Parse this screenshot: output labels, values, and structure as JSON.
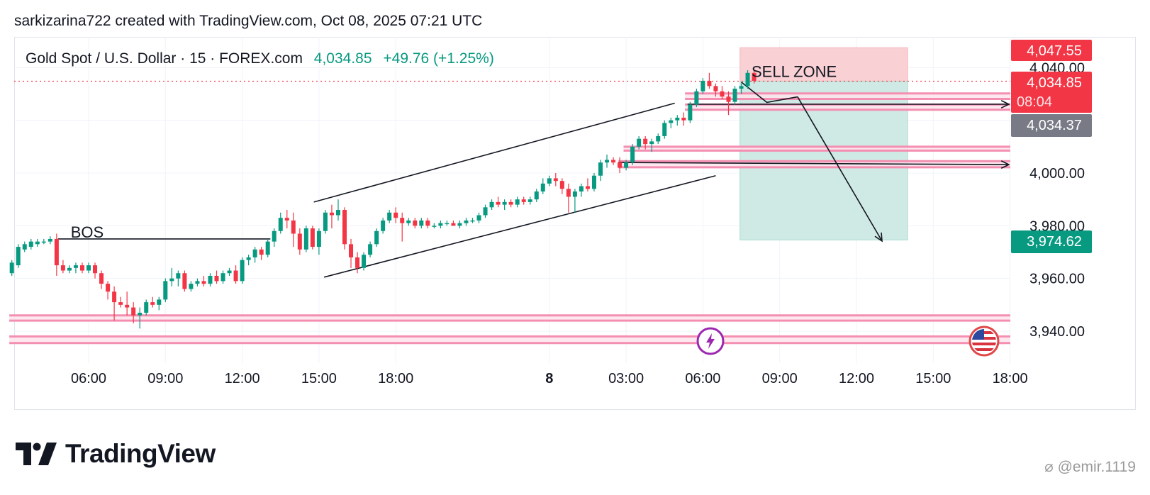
{
  "header": {
    "credit": "sarkizarina722 created with TradingView.com, Oct 08, 2025 07:21 UTC"
  },
  "legend": {
    "symbol": "Gold Spot / U.S. Dollar · 15 · FOREX.com",
    "price": "4,034.85",
    "change": "+49.76 (+1.25%)"
  },
  "brand": {
    "name": "TradingView"
  },
  "watermark": {
    "text": "@emir.1119"
  },
  "colors": {
    "up": "#089981",
    "down": "#f23645",
    "zone": "#f48fb1",
    "sell_red": "#f9d0d3",
    "sell_green": "#cfeae4"
  },
  "chart_data": {
    "type": "candlestick",
    "symbol": "XAUUSD",
    "timeframe": "15",
    "y_ticks": [
      {
        "value": 4040,
        "label": "4,040.00"
      },
      {
        "value": 4000,
        "label": "4,000.00"
      },
      {
        "value": 3980,
        "label": "3,980.00"
      },
      {
        "value": 3960,
        "label": "3,960.00"
      },
      {
        "value": 3940,
        "label": "3,940.00"
      }
    ],
    "x_ticks": [
      {
        "hour": 6,
        "label": "06:00"
      },
      {
        "hour": 9,
        "label": "09:00"
      },
      {
        "hour": 12,
        "label": "12:00"
      },
      {
        "hour": 15,
        "label": "15:00"
      },
      {
        "hour": 18,
        "label": "18:00"
      },
      {
        "hour": 24,
        "label": "8",
        "bold": true
      },
      {
        "hour": 27,
        "label": "03:00"
      },
      {
        "hour": 30,
        "label": "06:00"
      },
      {
        "hour": 33,
        "label": "09:00"
      },
      {
        "hour": 36,
        "label": "12:00"
      },
      {
        "hour": 39,
        "label": "15:00"
      },
      {
        "hour": 42,
        "label": "18:00"
      }
    ],
    "price_tags": [
      {
        "value": 4047.55,
        "label": "4,047.55",
        "sub": "",
        "color": "#f23645"
      },
      {
        "value": 4034.85,
        "label": "4,034.85",
        "sub": "08:04",
        "color": "#f23645"
      },
      {
        "value": 4034.37,
        "label": "4,034.37",
        "sub": "",
        "color": "#787b86"
      },
      {
        "value": 3974.62,
        "label": "3,974.62",
        "sub": "",
        "color": "#089981"
      }
    ],
    "annotations": [
      {
        "text": "BOS",
        "hour": 5.3,
        "price": 3975.5
      },
      {
        "text": "SELL ZONE",
        "hour": 31.9,
        "price": 4036.5
      }
    ],
    "sell_position": {
      "start_hour": 31.45,
      "end_hour": 38.0,
      "entry": 4034.85,
      "stop": 4047.55,
      "target": 3974.62
    },
    "zones": [
      {
        "top": 4030.2,
        "bottom": 4028.1,
        "start_hour": 29.3
      },
      {
        "top": 4026.0,
        "bottom": 4024.0,
        "start_hour": 29.3
      },
      {
        "top": 4010.0,
        "bottom": 4008.5,
        "start_hour": 26.9
      },
      {
        "top": 4004.5,
        "bottom": 4002.2,
        "start_hour": 26.7
      },
      {
        "top": 3946.0,
        "bottom": 3944.0,
        "start_hour": 2.9
      },
      {
        "top": 3938.0,
        "bottom": 3935.5,
        "start_hour": 2.9
      }
    ],
    "candles": [
      {
        "o": 3962,
        "h": 3967,
        "l": 3961,
        "c": 3966
      },
      {
        "o": 3965,
        "h": 3973,
        "l": 3964,
        "c": 3972
      },
      {
        "o": 3971,
        "h": 3974,
        "l": 3970,
        "c": 3973
      },
      {
        "o": 3972,
        "h": 3975,
        "l": 3971,
        "c": 3974
      },
      {
        "o": 3973,
        "h": 3975,
        "l": 3972,
        "c": 3974
      },
      {
        "o": 3974,
        "h": 3975,
        "l": 3973,
        "c": 3974
      },
      {
        "o": 3974,
        "h": 3976,
        "l": 3973,
        "c": 3975
      },
      {
        "o": 3975,
        "h": 3977,
        "l": 3961,
        "c": 3965
      },
      {
        "o": 3965,
        "h": 3967,
        "l": 3962,
        "c": 3963
      },
      {
        "o": 3963,
        "h": 3965,
        "l": 3962,
        "c": 3964
      },
      {
        "o": 3964,
        "h": 3966,
        "l": 3962,
        "c": 3965
      },
      {
        "o": 3965,
        "h": 3966,
        "l": 3962,
        "c": 3963
      },
      {
        "o": 3963,
        "h": 3966,
        "l": 3962,
        "c": 3965
      },
      {
        "o": 3965,
        "h": 3966,
        "l": 3960,
        "c": 3962
      },
      {
        "o": 3962,
        "h": 3963,
        "l": 3956,
        "c": 3958
      },
      {
        "o": 3958,
        "h": 3959,
        "l": 3952,
        "c": 3955
      },
      {
        "o": 3955,
        "h": 3957,
        "l": 3944,
        "c": 3951
      },
      {
        "o": 3951,
        "h": 3953,
        "l": 3949,
        "c": 3950
      },
      {
        "o": 3950,
        "h": 3955,
        "l": 3946,
        "c": 3949
      },
      {
        "o": 3949,
        "h": 3951,
        "l": 3943,
        "c": 3946
      },
      {
        "o": 3946,
        "h": 3949,
        "l": 3941,
        "c": 3947
      },
      {
        "o": 3947,
        "h": 3952,
        "l": 3946,
        "c": 3951
      },
      {
        "o": 3951,
        "h": 3953,
        "l": 3949,
        "c": 3950
      },
      {
        "o": 3950,
        "h": 3953,
        "l": 3948,
        "c": 3952
      },
      {
        "o": 3952,
        "h": 3960,
        "l": 3951,
        "c": 3959
      },
      {
        "o": 3959,
        "h": 3964,
        "l": 3957,
        "c": 3960
      },
      {
        "o": 3960,
        "h": 3963,
        "l": 3957,
        "c": 3962
      },
      {
        "o": 3962,
        "h": 3963,
        "l": 3955,
        "c": 3956
      },
      {
        "o": 3956,
        "h": 3959,
        "l": 3955,
        "c": 3958
      },
      {
        "o": 3958,
        "h": 3960,
        "l": 3957,
        "c": 3959
      },
      {
        "o": 3959,
        "h": 3961,
        "l": 3957,
        "c": 3958
      },
      {
        "o": 3958,
        "h": 3962,
        "l": 3957,
        "c": 3961
      },
      {
        "o": 3961,
        "h": 3963,
        "l": 3958,
        "c": 3959
      },
      {
        "o": 3959,
        "h": 3963,
        "l": 3958,
        "c": 3962
      },
      {
        "o": 3962,
        "h": 3964,
        "l": 3961,
        "c": 3963
      },
      {
        "o": 3963,
        "h": 3965,
        "l": 3958,
        "c": 3959
      },
      {
        "o": 3959,
        "h": 3968,
        "l": 3958,
        "c": 3967
      },
      {
        "o": 3967,
        "h": 3969,
        "l": 3965,
        "c": 3968
      },
      {
        "o": 3968,
        "h": 3972,
        "l": 3966,
        "c": 3971
      },
      {
        "o": 3971,
        "h": 3972,
        "l": 3967,
        "c": 3969
      },
      {
        "o": 3969,
        "h": 3975,
        "l": 3968,
        "c": 3974
      },
      {
        "o": 3974,
        "h": 3979,
        "l": 3972,
        "c": 3978
      },
      {
        "o": 3978,
        "h": 3985,
        "l": 3977,
        "c": 3983
      },
      {
        "o": 3983,
        "h": 3986,
        "l": 3979,
        "c": 3982
      },
      {
        "o": 3982,
        "h": 3985,
        "l": 3972,
        "c": 3977
      },
      {
        "o": 3977,
        "h": 3979,
        "l": 3969,
        "c": 3971
      },
      {
        "o": 3971,
        "h": 3980,
        "l": 3970,
        "c": 3979
      },
      {
        "o": 3979,
        "h": 3980,
        "l": 3971,
        "c": 3972
      },
      {
        "o": 3972,
        "h": 3979,
        "l": 3969,
        "c": 3978
      },
      {
        "o": 3978,
        "h": 3986,
        "l": 3977,
        "c": 3985
      },
      {
        "o": 3985,
        "h": 3988,
        "l": 3979,
        "c": 3984
      },
      {
        "o": 3984,
        "h": 3990,
        "l": 3982,
        "c": 3986
      },
      {
        "o": 3986,
        "h": 3987,
        "l": 3971,
        "c": 3973
      },
      {
        "o": 3973,
        "h": 3975,
        "l": 3964,
        "c": 3968
      },
      {
        "o": 3968,
        "h": 3970,
        "l": 3962,
        "c": 3964
      },
      {
        "o": 3964,
        "h": 3970,
        "l": 3963,
        "c": 3969
      },
      {
        "o": 3969,
        "h": 3974,
        "l": 3968,
        "c": 3973
      },
      {
        "o": 3973,
        "h": 3979,
        "l": 3972,
        "c": 3978
      },
      {
        "o": 3978,
        "h": 3983,
        "l": 3977,
        "c": 3982
      },
      {
        "o": 3982,
        "h": 3986,
        "l": 3981,
        "c": 3985
      },
      {
        "o": 3985,
        "h": 3987,
        "l": 3981,
        "c": 3983
      },
      {
        "o": 3983,
        "h": 3985,
        "l": 3974,
        "c": 3981
      },
      {
        "o": 3981,
        "h": 3983,
        "l": 3980,
        "c": 3982
      },
      {
        "o": 3982,
        "h": 3983,
        "l": 3979,
        "c": 3980
      },
      {
        "o": 3980,
        "h": 3983,
        "l": 3979,
        "c": 3982
      },
      {
        "o": 3982,
        "h": 3983,
        "l": 3979,
        "c": 3980
      },
      {
        "o": 3980,
        "h": 3981,
        "l": 3979,
        "c": 3980
      },
      {
        "o": 3980,
        "h": 3982,
        "l": 3979,
        "c": 3981
      },
      {
        "o": 3981,
        "h": 3982,
        "l": 3980,
        "c": 3981
      },
      {
        "o": 3981,
        "h": 3982,
        "l": 3980,
        "c": 3980
      },
      {
        "o": 3980,
        "h": 3982,
        "l": 3979,
        "c": 3981
      },
      {
        "o": 3981,
        "h": 3983,
        "l": 3980,
        "c": 3982
      },
      {
        "o": 3982,
        "h": 3983,
        "l": 3981,
        "c": 3982
      },
      {
        "o": 3982,
        "h": 3985,
        "l": 3981,
        "c": 3984
      },
      {
        "o": 3984,
        "h": 3988,
        "l": 3983,
        "c": 3987
      },
      {
        "o": 3987,
        "h": 3990,
        "l": 3986,
        "c": 3989
      },
      {
        "o": 3989,
        "h": 3991,
        "l": 3987,
        "c": 3988
      },
      {
        "o": 3988,
        "h": 3990,
        "l": 3986,
        "c": 3989
      },
      {
        "o": 3989,
        "h": 3990,
        "l": 3987,
        "c": 3988
      },
      {
        "o": 3988,
        "h": 3991,
        "l": 3987,
        "c": 3990
      },
      {
        "o": 3990,
        "h": 3991,
        "l": 3988,
        "c": 3989
      },
      {
        "o": 3989,
        "h": 3991,
        "l": 3988,
        "c": 3990
      },
      {
        "o": 3990,
        "h": 3994,
        "l": 3989,
        "c": 3993
      },
      {
        "o": 3993,
        "h": 3998,
        "l": 3992,
        "c": 3996
      },
      {
        "o": 3996,
        "h": 3999,
        "l": 3995,
        "c": 3998
      },
      {
        "o": 3998,
        "h": 4000,
        "l": 3995,
        "c": 3997
      },
      {
        "o": 3997,
        "h": 3998,
        "l": 3992,
        "c": 3994
      },
      {
        "o": 3994,
        "h": 3996,
        "l": 3985,
        "c": 3991
      },
      {
        "o": 3991,
        "h": 3994,
        "l": 3985,
        "c": 3993
      },
      {
        "o": 3993,
        "h": 3996,
        "l": 3991,
        "c": 3995
      },
      {
        "o": 3995,
        "h": 3998,
        "l": 3993,
        "c": 3994
      },
      {
        "o": 3994,
        "h": 4000,
        "l": 3993,
        "c": 3999
      },
      {
        "o": 3999,
        "h": 4005,
        "l": 3997,
        "c": 4004
      },
      {
        "o": 4004,
        "h": 4007,
        "l": 4002,
        "c": 4005
      },
      {
        "o": 4005,
        "h": 4006,
        "l": 4003,
        "c": 4004
      },
      {
        "o": 4004,
        "h": 4006,
        "l": 4000,
        "c": 4002
      },
      {
        "o": 4002,
        "h": 4005,
        "l": 4001,
        "c": 4004
      },
      {
        "o": 4004,
        "h": 4011,
        "l": 4003,
        "c": 4010
      },
      {
        "o": 4010,
        "h": 4014,
        "l": 4009,
        "c": 4013
      },
      {
        "o": 4013,
        "h": 4014,
        "l": 4009,
        "c": 4011
      },
      {
        "o": 4011,
        "h": 4013,
        "l": 4008,
        "c": 4012
      },
      {
        "o": 4012,
        "h": 4015,
        "l": 4011,
        "c": 4014
      },
      {
        "o": 4014,
        "h": 4020,
        "l": 4013,
        "c": 4019
      },
      {
        "o": 4019,
        "h": 4021,
        "l": 4017,
        "c": 4020
      },
      {
        "o": 4020,
        "h": 4022,
        "l": 4018,
        "c": 4021
      },
      {
        "o": 4021,
        "h": 4023,
        "l": 4018,
        "c": 4020
      },
      {
        "o": 4020,
        "h": 4027,
        "l": 4019,
        "c": 4026
      },
      {
        "o": 4026,
        "h": 4032,
        "l": 4025,
        "c": 4031
      },
      {
        "o": 4031,
        "h": 4036,
        "l": 4030,
        "c": 4035
      },
      {
        "o": 4035,
        "h": 4038,
        "l": 4032,
        "c": 4033
      },
      {
        "o": 4033,
        "h": 4034,
        "l": 4029,
        "c": 4031
      },
      {
        "o": 4031,
        "h": 4033,
        "l": 4028,
        "c": 4029
      },
      {
        "o": 4029,
        "h": 4031,
        "l": 4022,
        "c": 4027
      },
      {
        "o": 4027,
        "h": 4033,
        "l": 4026,
        "c": 4032
      },
      {
        "o": 4032,
        "h": 4034,
        "l": 4030,
        "c": 4033
      },
      {
        "o": 4033,
        "h": 4039,
        "l": 4032,
        "c": 4038
      },
      {
        "o": 4038,
        "h": 4039,
        "l": 4034,
        "c": 4035
      }
    ]
  }
}
